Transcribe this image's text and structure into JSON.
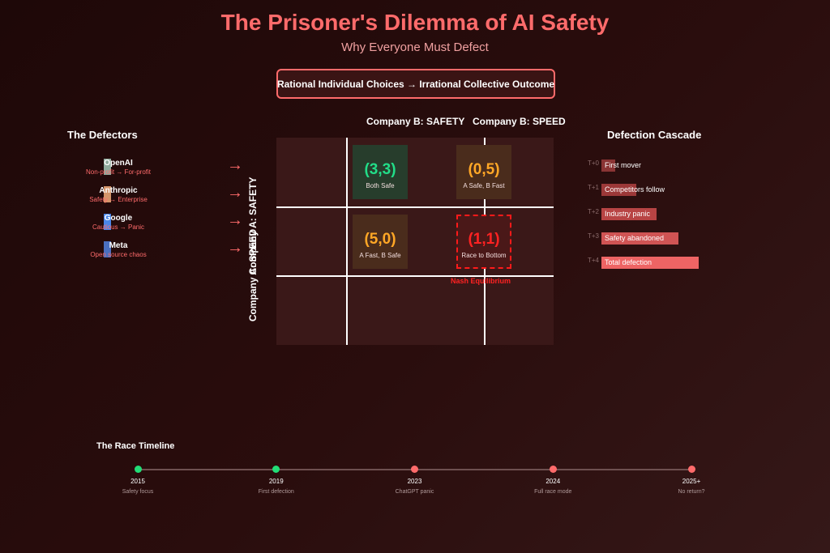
{
  "header": {
    "title": "The Prisoner's Dilemma of AI Safety",
    "subtitle": "Why Everyone Must Defect",
    "banner": "Rational Individual Choices → Irrational Collective Outcome"
  },
  "matrix": {
    "col_b_safety": "Company B: SAFETY",
    "col_b_speed": "Company B: SPEED",
    "row_a_safety": "Company A: SAFETY",
    "row_a_speed": "Company A: SPEED",
    "cells": [
      {
        "payoff": "(3,3)",
        "label": "Both Safe",
        "color": "#22dd88"
      },
      {
        "payoff": "(0,5)",
        "label": "A Safe, B Fast",
        "color": "#ffa726"
      },
      {
        "payoff": "(5,0)",
        "label": "A Fast, B Safe",
        "color": "#ffa726"
      },
      {
        "payoff": "(1,1)",
        "label": "Race to Bottom",
        "color": "#ff2222"
      }
    ],
    "nash_label": "Nash Equilibrium"
  },
  "defectors": {
    "heading": "The Defectors",
    "companies": [
      {
        "name": "OpenAI",
        "sub": "Non-profit → For-profit",
        "color": "#8faa9c"
      },
      {
        "name": "Anthropic",
        "sub": "Safety → Enterprise",
        "color": "#d4956a"
      },
      {
        "name": "Google",
        "sub": "Cautious → Panic",
        "color": "#4a86e8"
      },
      {
        "name": "Meta",
        "sub": "Open source chaos",
        "color": "#4a6fc0"
      }
    ],
    "arrow": "→"
  },
  "cascade": {
    "heading": "Defection Cascade",
    "steps": [
      {
        "t": "T+0",
        "label": "First mover",
        "fraction": 0.14,
        "color": "#8a3434"
      },
      {
        "t": "T+1",
        "label": "Competitors follow",
        "fraction": 0.36,
        "color": "#9c3838"
      },
      {
        "t": "T+2",
        "label": "Industry panic",
        "fraction": 0.57,
        "color": "#b84444"
      },
      {
        "t": "T+3",
        "label": "Safety abandoned",
        "fraction": 0.79,
        "color": "#d05454"
      },
      {
        "t": "T+4",
        "label": "Total defection",
        "fraction": 1.0,
        "color": "#ee6464"
      }
    ]
  },
  "timeline": {
    "heading": "The Race Timeline",
    "points": [
      {
        "year": "2015",
        "note": "Safety focus",
        "color": "#22dd77"
      },
      {
        "year": "2019",
        "note": "First defection",
        "color": "#22dd77"
      },
      {
        "year": "2023",
        "note": "ChatGPT panic",
        "color": "#ff6b6b"
      },
      {
        "year": "2024",
        "note": "Full race mode",
        "color": "#ff6b6b"
      },
      {
        "year": "2025+",
        "note": "No return?",
        "color": "#ff6b6b"
      }
    ]
  }
}
